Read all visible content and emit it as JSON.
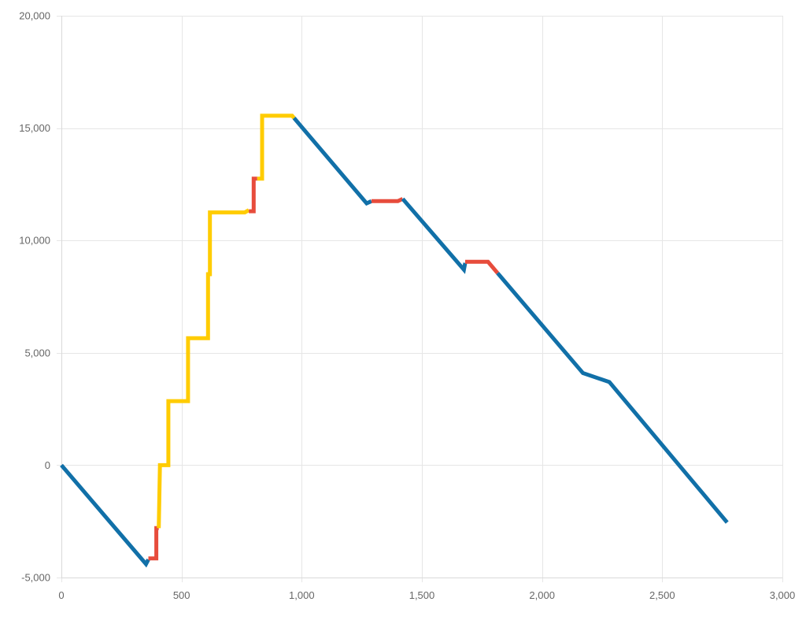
{
  "chart_data": {
    "type": "line",
    "title": "",
    "xlabel": "",
    "ylabel": "",
    "xlim": [
      0,
      3000
    ],
    "ylim": [
      -5000,
      20000
    ],
    "x_ticks": [
      0,
      500,
      1000,
      1500,
      2000,
      2500,
      3000
    ],
    "x_tick_labels": [
      "0",
      "500",
      "1,000",
      "1,500",
      "2,000",
      "2,500",
      "3,000"
    ],
    "y_ticks": [
      -5000,
      0,
      5000,
      10000,
      15000,
      20000
    ],
    "y_tick_labels": [
      "-5,000",
      "0",
      "5,000",
      "10,000",
      "15,000",
      "20,000"
    ],
    "grid": true,
    "legend": "none",
    "colors": {
      "blue": "#1170a8",
      "red": "#e74c3c",
      "yellow": "#ffcc00",
      "grid": "#e6e6e6",
      "axis": "#d9d9d9"
    },
    "segments": [
      {
        "color": "blue",
        "points": [
          [
            0,
            0
          ],
          [
            352,
            -4400
          ],
          [
            362,
            -4200
          ]
        ]
      },
      {
        "color": "red",
        "points": [
          [
            362,
            -4150
          ],
          [
            395,
            -4150
          ],
          [
            395,
            -2800
          ],
          [
            405,
            -2800
          ]
        ]
      },
      {
        "color": "yellow",
        "points": [
          [
            405,
            -2800
          ],
          [
            410,
            0
          ],
          [
            445,
            0
          ],
          [
            445,
            2850
          ],
          [
            527,
            2850
          ],
          [
            527,
            5650
          ],
          [
            610,
            5650
          ],
          [
            610,
            8500
          ],
          [
            618,
            8500
          ],
          [
            618,
            11250
          ],
          [
            763,
            11250
          ],
          [
            780,
            11350
          ]
        ]
      },
      {
        "color": "red",
        "points": [
          [
            780,
            11300
          ],
          [
            800,
            11300
          ],
          [
            800,
            12750
          ],
          [
            815,
            12750
          ]
        ]
      },
      {
        "color": "yellow",
        "points": [
          [
            815,
            12750
          ],
          [
            835,
            12750
          ],
          [
            835,
            15550
          ],
          [
            960,
            15550
          ],
          [
            968,
            15450
          ]
        ]
      },
      {
        "color": "blue",
        "points": [
          [
            968,
            15450
          ],
          [
            1270,
            11650
          ],
          [
            1290,
            11750
          ]
        ]
      },
      {
        "color": "red",
        "points": [
          [
            1290,
            11750
          ],
          [
            1400,
            11750
          ],
          [
            1420,
            11850
          ]
        ]
      },
      {
        "color": "blue",
        "points": [
          [
            1420,
            11850
          ],
          [
            1675,
            8700
          ],
          [
            1680,
            9000
          ]
        ]
      },
      {
        "color": "red",
        "points": [
          [
            1680,
            9050
          ],
          [
            1775,
            9050
          ],
          [
            1815,
            8550
          ]
        ]
      },
      {
        "color": "blue",
        "points": [
          [
            1815,
            8550
          ],
          [
            2170,
            4100
          ],
          [
            2280,
            3700
          ],
          [
            2770,
            -2550
          ]
        ]
      }
    ]
  }
}
